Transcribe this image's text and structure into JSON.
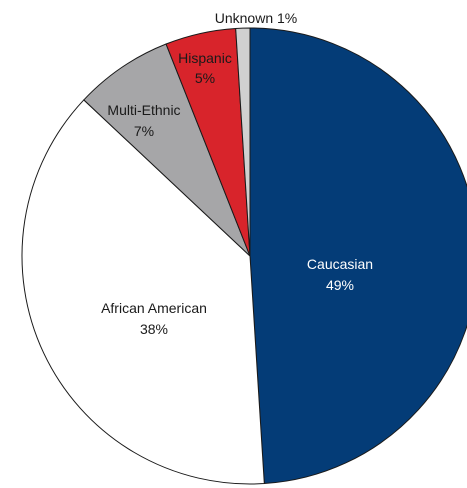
{
  "chart_data": {
    "type": "pie",
    "title": "",
    "slices": [
      {
        "label": "Caucasian",
        "value": 49,
        "value_label": "49%",
        "color": "#043c77",
        "text_color": "#ffffff"
      },
      {
        "label": "African American",
        "value": 38,
        "value_label": "38%",
        "color": "#ffffff",
        "text_color": "#1a1a1a"
      },
      {
        "label": "Multi-Ethnic",
        "value": 7,
        "value_label": "7%",
        "color": "#a6a6a8",
        "text_color": "#1a1a1a"
      },
      {
        "label": "Hispanic",
        "value": 5,
        "value_label": "5%",
        "color": "#d8242b",
        "text_color": "#1a1a1a"
      },
      {
        "label": "Unknown",
        "value": 1,
        "value_label": "Unknown 1%",
        "color": "#d0d0d0",
        "text_color": "#1a1a1a"
      }
    ]
  }
}
